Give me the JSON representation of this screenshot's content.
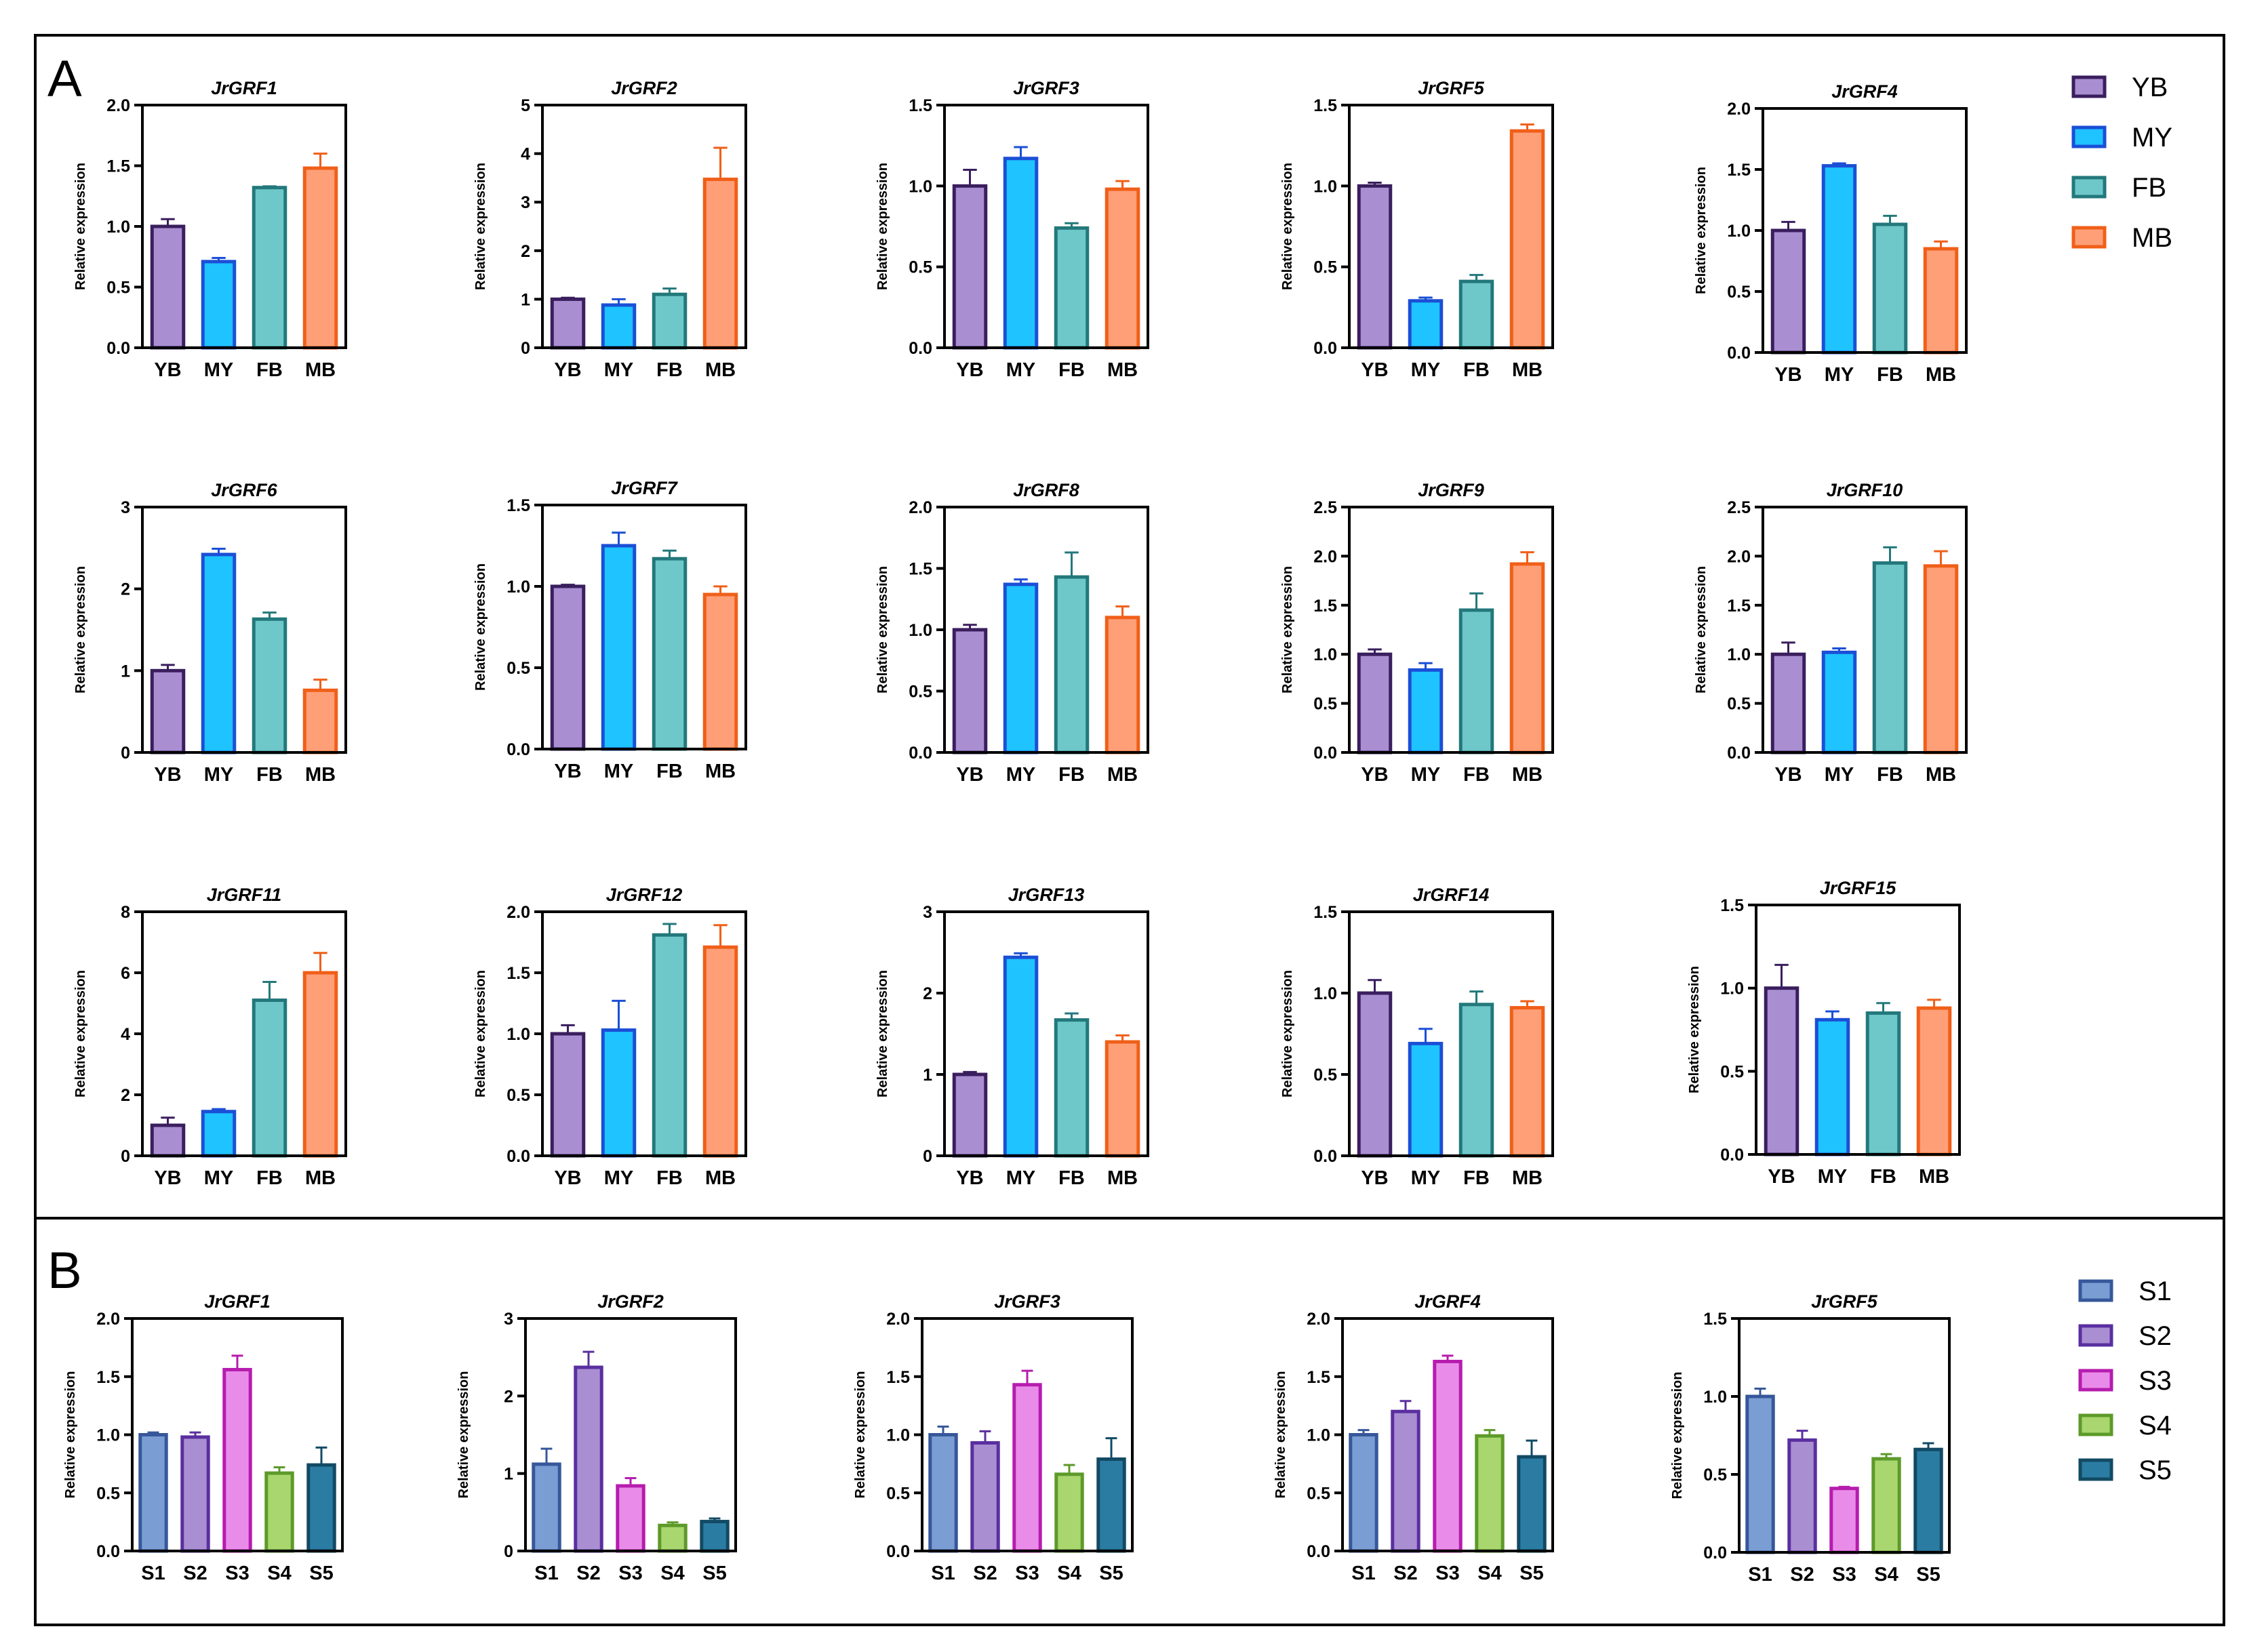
{
  "panels": [
    {
      "label": "A",
      "legend": {
        "entries": [
          "YB",
          "MY",
          "FB",
          "MB"
        ]
      }
    },
    {
      "label": "B",
      "legend": {
        "entries": [
          "S1",
          "S2",
          "S3",
          "S4",
          "S5"
        ]
      }
    }
  ],
  "colors": {
    "YB": {
      "fill": "#a98fd2",
      "stroke": "#3a1e5e"
    },
    "MY": {
      "fill": "#1ec3ff",
      "stroke": "#1b4fd6"
    },
    "FB": {
      "fill": "#6ec7c8",
      "stroke": "#23787b"
    },
    "MB": {
      "fill": "#fe9f78",
      "stroke": "#f05f18"
    },
    "S1": {
      "fill": "#7a9ed3",
      "stroke": "#36579a"
    },
    "S2": {
      "fill": "#a98fd2",
      "stroke": "#5a2fa0"
    },
    "S3": {
      "fill": "#e98ce9",
      "stroke": "#b61cae"
    },
    "S4": {
      "fill": "#a9d66e",
      "stroke": "#5d9a2a"
    },
    "S5": {
      "fill": "#2b7ca3",
      "stroke": "#124a64"
    }
  },
  "chart_data": [
    {
      "type": "bar",
      "panel": "A",
      "title": "JrGRF1",
      "xlabel": "",
      "ylabel": "Relative expression",
      "categories": [
        "YB",
        "MY",
        "FB",
        "MB"
      ],
      "values": [
        1.0,
        0.71,
        1.32,
        1.48
      ],
      "errors": [
        0.06,
        0.03,
        0.01,
        0.12
      ],
      "ylim": [
        0,
        2.0
      ],
      "yticks": [
        "0.0",
        "0.5",
        "1.0",
        "1.5",
        "2.0"
      ]
    },
    {
      "type": "bar",
      "panel": "A",
      "title": "JrGRF2",
      "xlabel": "",
      "ylabel": "Relative expression",
      "categories": [
        "YB",
        "MY",
        "FB",
        "MB"
      ],
      "values": [
        1.0,
        0.88,
        1.1,
        3.47
      ],
      "errors": [
        0.03,
        0.12,
        0.12,
        0.65
      ],
      "ylim": [
        0,
        5
      ],
      "yticks": [
        "0",
        "1",
        "2",
        "3",
        "4",
        "5"
      ]
    },
    {
      "type": "bar",
      "panel": "A",
      "title": "JrGRF3",
      "xlabel": "",
      "ylabel": "Relative expression",
      "categories": [
        "YB",
        "MY",
        "FB",
        "MB"
      ],
      "values": [
        1.0,
        1.17,
        0.74,
        0.98
      ],
      "errors": [
        0.1,
        0.07,
        0.03,
        0.05
      ],
      "ylim": [
        0,
        1.5
      ],
      "yticks": [
        "0.0",
        "0.5",
        "1.0",
        "1.5"
      ]
    },
    {
      "type": "bar",
      "panel": "A",
      "title": "JrGRF5",
      "xlabel": "",
      "ylabel": "Relative expression",
      "categories": [
        "YB",
        "MY",
        "FB",
        "MB"
      ],
      "values": [
        1.0,
        0.29,
        0.41,
        1.34
      ],
      "errors": [
        0.02,
        0.02,
        0.04,
        0.04
      ],
      "ylim": [
        0,
        1.5
      ],
      "yticks": [
        "0.0",
        "0.5",
        "1.0",
        "1.5"
      ]
    },
    {
      "type": "bar",
      "panel": "A",
      "title": "JrGRF4",
      "xlabel": "",
      "ylabel": "Relative expression",
      "categories": [
        "YB",
        "MY",
        "FB",
        "MB"
      ],
      "values": [
        1.0,
        1.53,
        1.05,
        0.85
      ],
      "errors": [
        0.07,
        0.02,
        0.07,
        0.06
      ],
      "ylim": [
        0,
        2.0
      ],
      "yticks": [
        "0.0",
        "0.5",
        "1.0",
        "1.5",
        "2.0"
      ]
    },
    {
      "type": "bar",
      "panel": "A",
      "title": "JrGRF6",
      "xlabel": "",
      "ylabel": "Relative expression",
      "categories": [
        "YB",
        "MY",
        "FB",
        "MB"
      ],
      "values": [
        1.0,
        2.42,
        1.63,
        0.76
      ],
      "errors": [
        0.07,
        0.07,
        0.08,
        0.13
      ],
      "ylim": [
        0,
        3
      ],
      "yticks": [
        "0",
        "1",
        "2",
        "3"
      ]
    },
    {
      "type": "bar",
      "panel": "A",
      "title": "JrGRF7",
      "xlabel": "",
      "ylabel": "Relative expression",
      "categories": [
        "YB",
        "MY",
        "FB",
        "MB"
      ],
      "values": [
        1.0,
        1.25,
        1.17,
        0.95
      ],
      "errors": [
        0.01,
        0.08,
        0.05,
        0.05
      ],
      "ylim": [
        0,
        1.5
      ],
      "yticks": [
        "0.0",
        "0.5",
        "1.0",
        "1.5"
      ]
    },
    {
      "type": "bar",
      "panel": "A",
      "title": "JrGRF8",
      "xlabel": "",
      "ylabel": "Relative expression",
      "categories": [
        "YB",
        "MY",
        "FB",
        "MB"
      ],
      "values": [
        1.0,
        1.37,
        1.43,
        1.1
      ],
      "errors": [
        0.04,
        0.04,
        0.2,
        0.09
      ],
      "ylim": [
        0,
        2.0
      ],
      "yticks": [
        "0.0",
        "0.5",
        "1.0",
        "1.5",
        "2.0"
      ]
    },
    {
      "type": "bar",
      "panel": "A",
      "title": "JrGRF9",
      "xlabel": "",
      "ylabel": "Relative expression",
      "categories": [
        "YB",
        "MY",
        "FB",
        "MB"
      ],
      "values": [
        1.0,
        0.84,
        1.45,
        1.92
      ],
      "errors": [
        0.05,
        0.07,
        0.17,
        0.12
      ],
      "ylim": [
        0,
        2.5
      ],
      "yticks": [
        "0.0",
        "0.5",
        "1.0",
        "1.5",
        "2.0",
        "2.5"
      ]
    },
    {
      "type": "bar",
      "panel": "A",
      "title": "JrGRF10",
      "xlabel": "",
      "ylabel": "Relative expression",
      "categories": [
        "YB",
        "MY",
        "FB",
        "MB"
      ],
      "values": [
        1.0,
        1.02,
        1.93,
        1.9
      ],
      "errors": [
        0.12,
        0.04,
        0.16,
        0.15
      ],
      "ylim": [
        0,
        2.5
      ],
      "yticks": [
        "0.0",
        "0.5",
        "1.0",
        "1.5",
        "2.0",
        "2.5"
      ]
    },
    {
      "type": "bar",
      "panel": "A",
      "title": "JrGRF11",
      "xlabel": "",
      "ylabel": "Relative expression",
      "categories": [
        "YB",
        "MY",
        "FB",
        "MB"
      ],
      "values": [
        1.0,
        1.45,
        5.1,
        6.0
      ],
      "errors": [
        0.25,
        0.08,
        0.6,
        0.65
      ],
      "ylim": [
        0,
        8
      ],
      "yticks": [
        "0",
        "2",
        "4",
        "6",
        "8"
      ]
    },
    {
      "type": "bar",
      "panel": "A",
      "title": "JrGRF12",
      "xlabel": "",
      "ylabel": "Relative expression",
      "categories": [
        "YB",
        "MY",
        "FB",
        "MB"
      ],
      "values": [
        1.0,
        1.03,
        1.81,
        1.71
      ],
      "errors": [
        0.07,
        0.24,
        0.09,
        0.18
      ],
      "ylim": [
        0,
        2.0
      ],
      "yticks": [
        "0.0",
        "0.5",
        "1.0",
        "1.5",
        "2.0"
      ]
    },
    {
      "type": "bar",
      "panel": "A",
      "title": "JrGRF13",
      "xlabel": "",
      "ylabel": "Relative expression",
      "categories": [
        "YB",
        "MY",
        "FB",
        "MB"
      ],
      "values": [
        1.0,
        2.44,
        1.67,
        1.4
      ],
      "errors": [
        0.03,
        0.05,
        0.08,
        0.08
      ],
      "ylim": [
        0,
        3
      ],
      "yticks": [
        "0",
        "1",
        "2",
        "3"
      ]
    },
    {
      "type": "bar",
      "panel": "A",
      "title": "JrGRF14",
      "xlabel": "",
      "ylabel": "Relative expression",
      "categories": [
        "YB",
        "MY",
        "FB",
        "MB"
      ],
      "values": [
        1.0,
        0.69,
        0.93,
        0.91
      ],
      "errors": [
        0.08,
        0.09,
        0.08,
        0.04
      ],
      "ylim": [
        0,
        1.5
      ],
      "yticks": [
        "0.0",
        "0.5",
        "1.0",
        "1.5"
      ]
    },
    {
      "type": "bar",
      "panel": "A",
      "title": "JrGRF15",
      "xlabel": "",
      "ylabel": "Relative expression",
      "categories": [
        "YB",
        "MY",
        "FB",
        "MB"
      ],
      "values": [
        1.0,
        0.81,
        0.85,
        0.88
      ],
      "errors": [
        0.14,
        0.05,
        0.06,
        0.05
      ],
      "ylim": [
        0,
        1.5
      ],
      "yticks": [
        "0.0",
        "0.5",
        "1.0",
        "1.5"
      ]
    },
    {
      "type": "bar",
      "panel": "B",
      "title": "JrGRF1",
      "xlabel": "",
      "ylabel": "Relative expression",
      "categories": [
        "S1",
        "S2",
        "S3",
        "S4",
        "S5"
      ],
      "values": [
        1.0,
        0.98,
        1.56,
        0.67,
        0.74
      ],
      "errors": [
        0.02,
        0.04,
        0.12,
        0.05,
        0.15
      ],
      "ylim": [
        0,
        2.0
      ],
      "yticks": [
        "0.0",
        "0.5",
        "1.0",
        "1.5",
        "2.0"
      ]
    },
    {
      "type": "bar",
      "panel": "B",
      "title": "JrGRF2",
      "xlabel": "",
      "ylabel": "Relative expression",
      "categories": [
        "S1",
        "S2",
        "S3",
        "S4",
        "S5"
      ],
      "values": [
        1.12,
        2.37,
        0.84,
        0.33,
        0.38
      ],
      "errors": [
        0.2,
        0.2,
        0.1,
        0.04,
        0.04
      ],
      "ylim": [
        0,
        3
      ],
      "yticks": [
        "0",
        "1",
        "2",
        "3"
      ]
    },
    {
      "type": "bar",
      "panel": "B",
      "title": "JrGRF3",
      "xlabel": "",
      "ylabel": "Relative expression",
      "categories": [
        "S1",
        "S2",
        "S3",
        "S4",
        "S5"
      ],
      "values": [
        1.0,
        0.93,
        1.43,
        0.66,
        0.79
      ],
      "errors": [
        0.07,
        0.1,
        0.12,
        0.08,
        0.18
      ],
      "ylim": [
        0,
        2.0
      ],
      "yticks": [
        "0.0",
        "0.5",
        "1.0",
        "1.5",
        "2.0"
      ]
    },
    {
      "type": "bar",
      "panel": "B",
      "title": "JrGRF4",
      "xlabel": "",
      "ylabel": "Relative expression",
      "categories": [
        "S1",
        "S2",
        "S3",
        "S4",
        "S5"
      ],
      "values": [
        1.0,
        1.2,
        1.63,
        0.99,
        0.81
      ],
      "errors": [
        0.04,
        0.09,
        0.05,
        0.05,
        0.14
      ],
      "ylim": [
        0,
        2.0
      ],
      "yticks": [
        "0.0",
        "0.5",
        "1.0",
        "1.5",
        "2.0"
      ]
    },
    {
      "type": "bar",
      "panel": "B",
      "title": "JrGRF5",
      "xlabel": "",
      "ylabel": "Relative expression",
      "categories": [
        "S1",
        "S2",
        "S3",
        "S4",
        "S5"
      ],
      "values": [
        1.0,
        0.72,
        0.41,
        0.6,
        0.66
      ],
      "errors": [
        0.05,
        0.06,
        0.01,
        0.03,
        0.04
      ],
      "ylim": [
        0,
        1.5
      ],
      "yticks": [
        "0.0",
        "0.5",
        "1.0",
        "1.5"
      ]
    }
  ]
}
